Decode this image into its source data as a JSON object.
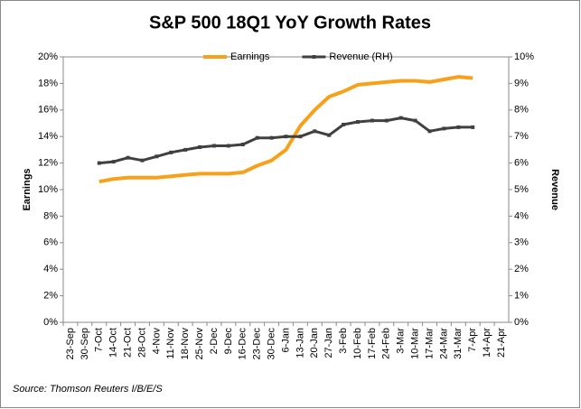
{
  "chart_data": {
    "type": "line",
    "title": "S&P 500 18Q1 YoY Growth Rates",
    "y_label": "Earnings",
    "y2_label": "Revenue",
    "source": "Source: Thomson  Reuters I/B/E/S",
    "categories": [
      "23-Sep",
      "30-Sep",
      "7-Oct",
      "14-Oct",
      "21-Oct",
      "28-Oct",
      "4-Nov",
      "11-Nov",
      "18-Nov",
      "25-Nov",
      "2-Dec",
      "9-Dec",
      "16-Dec",
      "23-Dec",
      "30-Dec",
      "6-Jan",
      "13-Jan",
      "20-Jan",
      "27-Jan",
      "3-Feb",
      "10-Feb",
      "17-Feb",
      "24-Feb",
      "3-Mar",
      "10-Mar",
      "17-Mar",
      "24-Mar",
      "31-Mar",
      "7-Apr",
      "14-Apr",
      "21-Apr"
    ],
    "series": [
      {
        "name": "Earnings",
        "color": "#f7a11a",
        "axis": "y",
        "values": [
          null,
          null,
          10.6,
          10.8,
          10.9,
          10.9,
          10.9,
          11.0,
          11.1,
          11.2,
          11.2,
          11.2,
          11.3,
          11.8,
          12.2,
          13.0,
          14.8,
          16.0,
          17.0,
          17.4,
          17.9,
          18.0,
          18.1,
          18.2,
          18.2,
          18.1,
          18.3,
          18.5,
          18.4,
          null,
          null
        ]
      },
      {
        "name": "Revenue (RH)",
        "color": "#404040",
        "axis": "y2",
        "values": [
          null,
          null,
          6.0,
          6.05,
          6.2,
          6.1,
          6.25,
          6.4,
          6.5,
          6.6,
          6.65,
          6.65,
          6.7,
          6.95,
          6.95,
          7.0,
          7.0,
          7.2,
          7.05,
          7.45,
          7.55,
          7.6,
          7.6,
          7.7,
          7.6,
          7.2,
          7.3,
          7.35,
          7.35,
          null,
          null
        ]
      }
    ],
    "ylim": [
      0,
      20
    ],
    "yticks": [
      {
        "value": 0,
        "label": "0%"
      },
      {
        "value": 2,
        "label": "2%"
      },
      {
        "value": 4,
        "label": "4%"
      },
      {
        "value": 6,
        "label": "6%"
      },
      {
        "value": 8,
        "label": "8%"
      },
      {
        "value": 10,
        "label": "10%"
      },
      {
        "value": 12,
        "label": "12%"
      },
      {
        "value": 14,
        "label": "14%"
      },
      {
        "value": 16,
        "label": "16%"
      },
      {
        "value": 18,
        "label": "18%"
      },
      {
        "value": 20,
        "label": "20%"
      }
    ],
    "y2lim": [
      0,
      10
    ],
    "y2ticks": [
      {
        "value": 0,
        "label": "0%"
      },
      {
        "value": 1,
        "label": "1%"
      },
      {
        "value": 2,
        "label": "2%"
      },
      {
        "value": 3,
        "label": "3%"
      },
      {
        "value": 4,
        "label": "4%"
      },
      {
        "value": 5,
        "label": "5%"
      },
      {
        "value": 6,
        "label": "6%"
      },
      {
        "value": 7,
        "label": "7%"
      },
      {
        "value": 8,
        "label": "8%"
      },
      {
        "value": 9,
        "label": "9%"
      },
      {
        "value": 10,
        "label": "10%"
      }
    ],
    "legend": "top"
  }
}
